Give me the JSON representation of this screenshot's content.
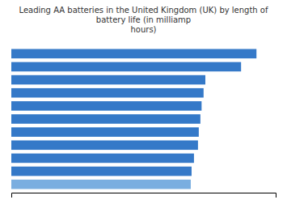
{
  "chart_data": {
    "type": "bar",
    "orientation": "horizontal",
    "title": "Leading AA batteries in the United Kingdom (UK) by length of battery life (in milliamp\nhours)",
    "categories": [
      null,
      null,
      null,
      null,
      null,
      null,
      null,
      null,
      null,
      null,
      null
    ],
    "values": [
      3060,
      2868,
      2422,
      2400,
      2375,
      2360,
      2340,
      2330,
      2280,
      2250,
      2240
    ],
    "colors": [
      "#3579C8",
      "#3579C8",
      "#3579C8",
      "#3579C8",
      "#3579C8",
      "#3579C8",
      "#3579C8",
      "#3579C8",
      "#3579C8",
      "#3579C8",
      "#7aaee0"
    ],
    "xlim": [
      0,
      3300
    ],
    "grid": false,
    "tick_labels": false
  }
}
